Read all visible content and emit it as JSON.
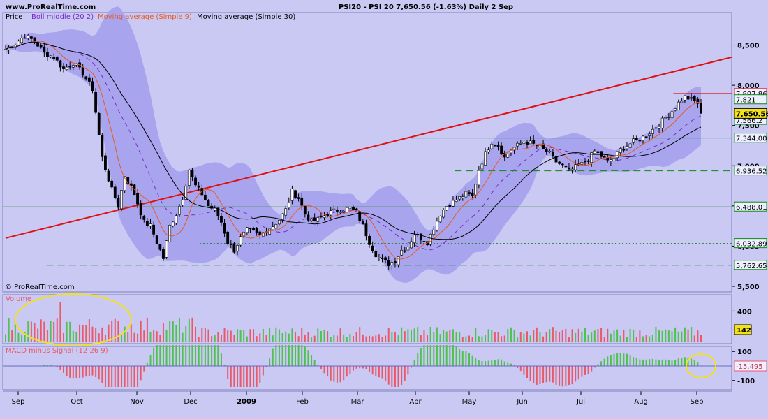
{
  "header": {
    "site": "www.ProRealTime.com",
    "title": "PSI20 - PSI 20    7,650.56 (-1.63%)    Daily  2 Sep"
  },
  "colors": {
    "background": "#c9c9f4",
    "band": "#a9a4ee",
    "up_candle": "#ffffff",
    "down_candle": "#000000",
    "ma9": "#e85a20",
    "ma30": "#000000",
    "trendline": "#e01010",
    "hline": "#0c8a0c",
    "vol_up": "#4ec24e",
    "vol_down": "#e85a6a",
    "highlight_circle": "#f2e21a",
    "last_price_box": "#f2e21a"
  },
  "price_panel": {
    "legend": {
      "price": "Price",
      "boll": "Boll middle (20 2)",
      "ma9": "Moving average (Simple 9)",
      "ma30": "Moving average (Simple 30)"
    },
    "axis_labels": [
      "8,500",
      "8,000",
      "7,500",
      "7,000",
      "6,500",
      "6,000",
      "5,500"
    ],
    "level_labels": [
      "7,897.86",
      "7,821",
      "7,566.2",
      "7,344.00",
      "6,936.52",
      "6,488.01",
      "6,032.89",
      "5,762.65"
    ],
    "last_price": "7,650.56",
    "watermark": "© ProRealTime.com"
  },
  "volume_panel": {
    "label": "Volume",
    "axis_labels": [
      "400"
    ],
    "last_value": "142"
  },
  "macd_panel": {
    "label": "MACD minus Signal (12 26 9)",
    "axis_labels": [
      "100",
      "-100"
    ],
    "last_value": "-15.495"
  },
  "x_axis": {
    "labels": [
      "Sep",
      "Oct",
      "Nov",
      "Dec",
      "2009",
      "Jan",
      "Feb",
      "Mar",
      "Apr",
      "May",
      "Jun",
      "Jul",
      "Aug",
      "Sep"
    ]
  },
  "chart_data": {
    "type": "candlestick",
    "price": {
      "ylim": [
        5500,
        8800
      ],
      "close_anchors": [
        [
          0,
          8450
        ],
        [
          3,
          8520
        ],
        [
          6,
          8620
        ],
        [
          9,
          8550
        ],
        [
          12,
          8400
        ],
        [
          15,
          8350
        ],
        [
          18,
          8200
        ],
        [
          21,
          8280
        ],
        [
          24,
          8150
        ],
        [
          27,
          7950
        ],
        [
          30,
          7100
        ],
        [
          33,
          6700
        ],
        [
          35,
          6500
        ],
        [
          37,
          6880
        ],
        [
          40,
          6650
        ],
        [
          43,
          6300
        ],
        [
          45,
          6250
        ],
        [
          47,
          6050
        ],
        [
          49,
          5850
        ],
        [
          51,
          6250
        ],
        [
          53,
          6400
        ],
        [
          55,
          6600
        ],
        [
          57,
          6950
        ],
        [
          59,
          6750
        ],
        [
          61,
          6650
        ],
        [
          63,
          6500
        ],
        [
          65,
          6450
        ],
        [
          67,
          6300
        ],
        [
          69,
          6050
        ],
        [
          71,
          5950
        ],
        [
          73,
          6100
        ],
        [
          75,
          6200
        ],
        [
          77,
          6180
        ],
        [
          79,
          6130
        ],
        [
          81,
          6200
        ],
        [
          83,
          6250
        ],
        [
          85,
          6330
        ],
        [
          87,
          6450
        ],
        [
          89,
          6680
        ],
        [
          91,
          6600
        ],
        [
          93,
          6400
        ],
        [
          95,
          6300
        ],
        [
          97,
          6330
        ],
        [
          99,
          6380
        ],
        [
          101,
          6420
        ],
        [
          103,
          6450
        ],
        [
          105,
          6460
        ],
        [
          107,
          6470
        ],
        [
          109,
          6420
        ],
        [
          111,
          6250
        ],
        [
          113,
          6050
        ],
        [
          115,
          5900
        ],
        [
          117,
          5820
        ],
        [
          119,
          5780
        ],
        [
          121,
          5820
        ],
        [
          123,
          5950
        ],
        [
          125,
          6000
        ],
        [
          127,
          6150
        ],
        [
          129,
          6100
        ],
        [
          131,
          6050
        ],
        [
          133,
          6230
        ],
        [
          135,
          6400
        ],
        [
          137,
          6500
        ],
        [
          139,
          6550
        ],
        [
          141,
          6600
        ],
        [
          143,
          6650
        ],
        [
          145,
          6620
        ],
        [
          147,
          6950
        ],
        [
          149,
          7150
        ],
        [
          151,
          7300
        ],
        [
          153,
          7250
        ],
        [
          155,
          7100
        ],
        [
          157,
          7200
        ],
        [
          159,
          7250
        ],
        [
          161,
          7300
        ],
        [
          163,
          7280
        ],
        [
          165,
          7250
        ],
        [
          167,
          7200
        ],
        [
          169,
          7150
        ],
        [
          171,
          7050
        ],
        [
          173,
          7000
        ],
        [
          175,
          6930
        ],
        [
          177,
          6980
        ],
        [
          179,
          7020
        ],
        [
          181,
          7080
        ],
        [
          183,
          7180
        ],
        [
          185,
          7120
        ],
        [
          187,
          7050
        ],
        [
          189,
          7100
        ],
        [
          191,
          7200
        ],
        [
          193,
          7250
        ],
        [
          195,
          7300
        ],
        [
          197,
          7330
        ],
        [
          199,
          7380
        ],
        [
          201,
          7450
        ],
        [
          203,
          7520
        ],
        [
          205,
          7600
        ],
        [
          207,
          7680
        ],
        [
          209,
          7780
        ],
        [
          211,
          7860
        ],
        [
          213,
          7820
        ],
        [
          215,
          7780
        ],
        [
          216,
          7650
        ]
      ],
      "last_close": 7650.56,
      "horizontal_levels": [
        {
          "value": 7897.86,
          "style": "solid",
          "color": "#e01010",
          "from": 0.92,
          "to": 1.0
        },
        {
          "value": 7344.0,
          "style": "solid",
          "color": "#0c8a0c",
          "from": 0.56,
          "to": 1.0
        },
        {
          "value": 6936.52,
          "style": "dashed",
          "color": "#0c8a0c",
          "from": 0.62,
          "to": 1.0
        },
        {
          "value": 6488.01,
          "style": "solid",
          "color": "#0c8a0c",
          "from": 0.0,
          "to": 1.0
        },
        {
          "value": 6032.89,
          "style": "dotted",
          "color": "#0c8a0c",
          "from": 0.27,
          "to": 1.0
        },
        {
          "value": 5762.65,
          "style": "dashed",
          "color": "#0c8a0c",
          "from": 0.06,
          "to": 1.0
        }
      ],
      "trendline": {
        "from": [
          0,
          6100
        ],
        "to": [
          226,
          8350
        ]
      }
    },
    "volume": {
      "ymax": 520,
      "highlight_center_frac": 0.09
    },
    "macd": {
      "ymin": -130,
      "ymax": 130,
      "highlight_center_frac": 0.96
    },
    "sessions": 217
  }
}
